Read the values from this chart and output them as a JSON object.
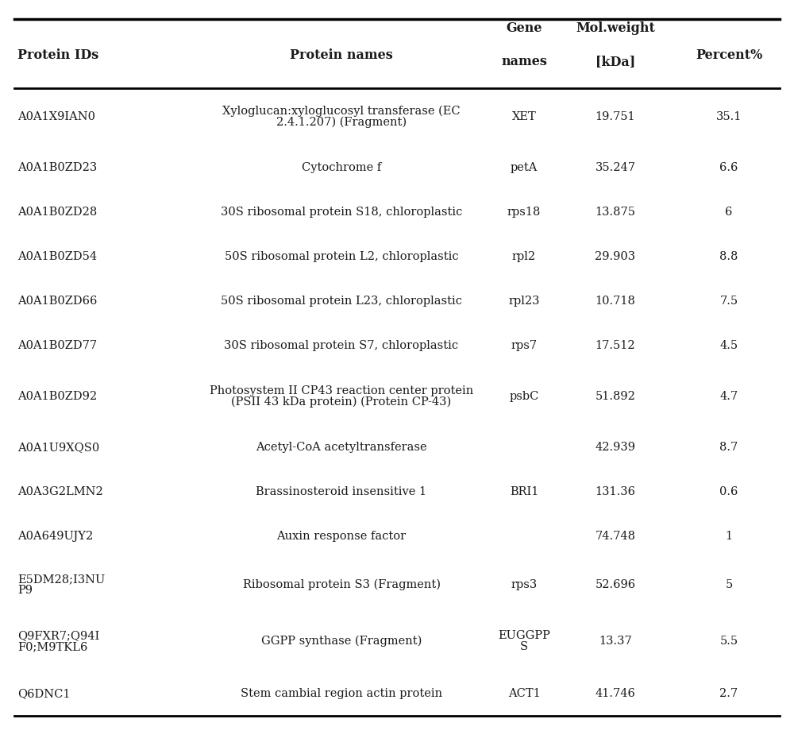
{
  "col_header_line1": [
    "Protein IDs",
    "Protein names",
    "Gene",
    "Mol.weight",
    "Percent%"
  ],
  "col_header_line2": [
    "",
    "",
    "names",
    "[kDa]",
    ""
  ],
  "rows": [
    {
      "protein_id": "A0A1X9IAN0",
      "protein_name": "Xyloglucan:xyloglucosyl transferase (EC\n2.4.1.207) (Fragment)",
      "gene_name": "XET",
      "mol_weight": "19.751",
      "percent": "35.1",
      "tall": true
    },
    {
      "protein_id": "A0A1B0ZD23",
      "protein_name": "Cytochrome f",
      "gene_name": "petA",
      "mol_weight": "35.247",
      "percent": "6.6",
      "tall": false
    },
    {
      "protein_id": "A0A1B0ZD28",
      "protein_name": "30S ribosomal protein S18, chloroplastic",
      "gene_name": "rps18",
      "mol_weight": "13.875",
      "percent": "6",
      "tall": false
    },
    {
      "protein_id": "A0A1B0ZD54",
      "protein_name": "50S ribosomal protein L2, chloroplastic",
      "gene_name": "rpl2",
      "mol_weight": "29.903",
      "percent": "8.8",
      "tall": false
    },
    {
      "protein_id": "A0A1B0ZD66",
      "protein_name": "50S ribosomal protein L23, chloroplastic",
      "gene_name": "rpl23",
      "mol_weight": "10.718",
      "percent": "7.5",
      "tall": false
    },
    {
      "protein_id": "A0A1B0ZD77",
      "protein_name": "30S ribosomal protein S7, chloroplastic",
      "gene_name": "rps7",
      "mol_weight": "17.512",
      "percent": "4.5",
      "tall": false
    },
    {
      "protein_id": "A0A1B0ZD92",
      "protein_name": "Photosystem II CP43 reaction center protein\n(PSII 43 kDa protein) (Protein CP-43)",
      "gene_name": "psbC",
      "mol_weight": "51.892",
      "percent": "4.7",
      "tall": true
    },
    {
      "protein_id": "A0A1U9XQS0",
      "protein_name": "Acetyl-CoA acetyltransferase",
      "gene_name": "",
      "mol_weight": "42.939",
      "percent": "8.7",
      "tall": false
    },
    {
      "protein_id": "A0A3G2LMN2",
      "protein_name": "Brassinosteroid insensitive 1",
      "gene_name": "BRI1",
      "mol_weight": "131.36",
      "percent": "0.6",
      "tall": false
    },
    {
      "protein_id": "A0A649UJY2",
      "protein_name": "Auxin response factor",
      "gene_name": "",
      "mol_weight": "74.748",
      "percent": "1",
      "tall": false
    },
    {
      "protein_id": "E5DM28;I3NU\nP9",
      "protein_name": "Ribosomal protein S3 (Fragment)",
      "gene_name": "rps3",
      "mol_weight": "52.696",
      "percent": "5",
      "tall": true
    },
    {
      "protein_id": "Q9FXR7;Q94I\nF0;M9TKL6",
      "protein_name": "GGPP synthase (Fragment)",
      "gene_name": "EUGGPP\nS",
      "mol_weight": "13.37",
      "percent": "5.5",
      "tall": true
    },
    {
      "protein_id": "Q6DNC1",
      "protein_name": "Stem cambial region actin protein",
      "gene_name": "ACT1",
      "mol_weight": "41.746",
      "percent": "2.7",
      "tall": false
    }
  ],
  "background_color": "#ffffff",
  "text_color": "#1a1a1a",
  "line_color": "#000000",
  "font_size": 10.5,
  "header_font_size": 11.5
}
